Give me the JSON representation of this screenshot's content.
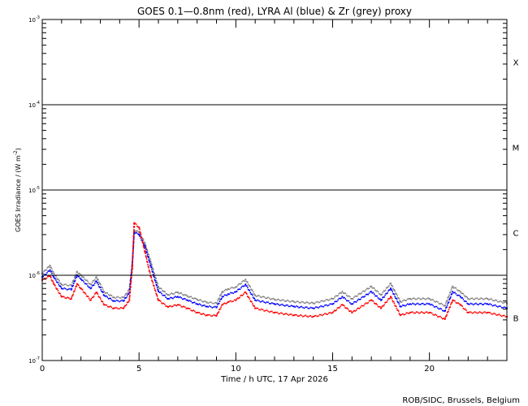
{
  "chart_data": {
    "type": "scatter",
    "title": "GOES 0.1—0.8nm (red), LYRA Al (blue) & Zr (grey) proxy",
    "xlabel": "Time / h UTC, 17 Apr 2026",
    "ylabel": "GOES Irradiance / (W m",
    "ylabel_sup": "-2",
    "ylabel_close": ")",
    "xlim": [
      0,
      24
    ],
    "ylim": [
      1e-07,
      0.001
    ],
    "yscale": "log",
    "x_ticks": [
      {
        "v": 0,
        "label": "0"
      },
      {
        "v": 5,
        "label": "5"
      },
      {
        "v": 10,
        "label": "10"
      },
      {
        "v": 15,
        "label": "15"
      },
      {
        "v": 20,
        "label": "20"
      }
    ],
    "y_ticks": [
      {
        "exp": -3,
        "base": "10",
        "sup": "-3"
      },
      {
        "exp": -4,
        "base": "10",
        "sup": "-4"
      },
      {
        "exp": -5,
        "base": "10",
        "sup": "-5"
      },
      {
        "exp": -6,
        "base": "10",
        "sup": "-6"
      },
      {
        "exp": -7,
        "base": "10",
        "sup": "-7"
      }
    ],
    "reference_lines": [
      0.0001,
      1e-05,
      1e-06
    ],
    "flare_classes": [
      {
        "label": "X",
        "exp": -3.5
      },
      {
        "label": "M",
        "exp": -4.5
      },
      {
        "label": "C",
        "exp": -5.5
      },
      {
        "label": "B",
        "exp": -6.5
      }
    ],
    "x": [
      0,
      0.4,
      0.6,
      1,
      1.5,
      1.8,
      2,
      2.5,
      2.8,
      3.2,
      3.7,
      4.2,
      4.5,
      4.65,
      4.75,
      5,
      5.3,
      5.6,
      6,
      6.5,
      7,
      7.5,
      8,
      8.5,
      9,
      9.3,
      9.6,
      10,
      10.5,
      11,
      12,
      13,
      14,
      15,
      15.5,
      16,
      17,
      17.5,
      18,
      18.5,
      19,
      20,
      20.8,
      21.2,
      21.6,
      22,
      23,
      24
    ],
    "series": [
      {
        "name": "Zr (grey)",
        "color": "#808080",
        "values": [
          1.05e-06,
          1.3e-06,
          1.05e-06,
          7.8e-07,
          7.6e-07,
          1.1e-06,
          1e-06,
          7.8e-07,
          9.5e-07,
          6.4e-07,
          5.5e-07,
          5.5e-07,
          6.8e-07,
          1.4e-06,
          3.4e-06,
          3.2e-06,
          2.4e-06,
          1.45e-06,
          7.3e-07,
          5.9e-07,
          6.3e-07,
          5.7e-07,
          5.2e-07,
          4.8e-07,
          4.7e-07,
          6.4e-07,
          6.9e-07,
          7.3e-07,
          8.9e-07,
          5.8e-07,
          5.2e-07,
          4.9e-07,
          4.7e-07,
          5.3e-07,
          6.4e-07,
          5.3e-07,
          7.4e-07,
          5.9e-07,
          8e-07,
          4.9e-07,
          5.3e-07,
          5.3e-07,
          4.4e-07,
          7.4e-07,
          6.4e-07,
          5.3e-07,
          5.3e-07,
          4.7e-07
        ]
      },
      {
        "name": "LYRA Al (blue)",
        "color": "#0000ff",
        "values": [
          9.5e-07,
          1.15e-06,
          9.5e-07,
          7e-07,
          6.8e-07,
          1e-06,
          9e-07,
          7e-07,
          8.5e-07,
          5.8e-07,
          5e-07,
          5e-07,
          6.2e-07,
          1.3e-06,
          3.2e-06,
          3e-06,
          2.2e-06,
          1.3e-06,
          6.5e-07,
          5.3e-07,
          5.6e-07,
          5.1e-07,
          4.6e-07,
          4.3e-07,
          4.2e-07,
          5.6e-07,
          6e-07,
          6.4e-07,
          7.8e-07,
          5.1e-07,
          4.6e-07,
          4.3e-07,
          4.1e-07,
          4.6e-07,
          5.6e-07,
          4.6e-07,
          6.4e-07,
          5.1e-07,
          7e-07,
          4.3e-07,
          4.6e-07,
          4.6e-07,
          3.8e-07,
          6.4e-07,
          5.6e-07,
          4.6e-07,
          4.6e-07,
          4.1e-07
        ]
      },
      {
        "name": "GOES 0.1-0.8nm (red)",
        "color": "#ff0000",
        "values": [
          8.8e-07,
          9.8e-07,
          7.9e-07,
          5.6e-07,
          5.3e-07,
          7.9e-07,
          7e-07,
          5.1e-07,
          6.3e-07,
          4.5e-07,
          4.1e-07,
          4.1e-07,
          5.1e-07,
          1.2e-06,
          4.1e-06,
          3.65e-06,
          1.9e-06,
          9.8e-07,
          5.1e-07,
          4.25e-07,
          4.5e-07,
          4.1e-07,
          3.65e-07,
          3.4e-07,
          3.35e-07,
          4.5e-07,
          4.85e-07,
          5.1e-07,
          6.3e-07,
          4.1e-07,
          3.65e-07,
          3.4e-07,
          3.27e-07,
          3.65e-07,
          4.5e-07,
          3.65e-07,
          5.1e-07,
          4.1e-07,
          5.6e-07,
          3.4e-07,
          3.65e-07,
          3.65e-07,
          3.06e-07,
          5.1e-07,
          4.5e-07,
          3.65e-07,
          3.65e-07,
          3.27e-07
        ]
      }
    ]
  },
  "footer": "ROB/SIDC, Brussels, Belgium"
}
